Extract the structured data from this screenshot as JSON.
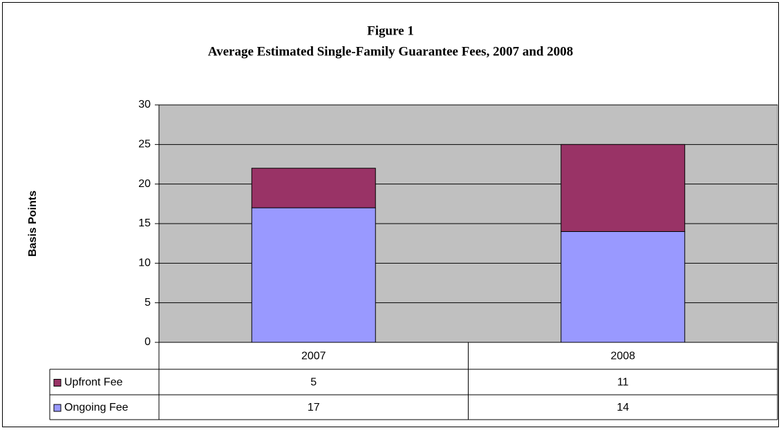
{
  "chart_data": {
    "type": "stacked_bar",
    "title": [
      "Figure 1",
      "Average Estimated Single-Family Guarantee Fees, 2007 and 2008"
    ],
    "y_label": "Basis Points",
    "categories": [
      "2007",
      "2008"
    ],
    "series": [
      {
        "name": "Upfront Fee",
        "color": "#993366",
        "values": [
          5,
          11
        ]
      },
      {
        "name": "Ongoing Fee",
        "color": "#9999ff",
        "values": [
          17,
          14
        ]
      }
    ],
    "ylim": [
      0,
      30
    ],
    "yticks": [
      0,
      5,
      10,
      15,
      20,
      25,
      30
    ],
    "grid": true,
    "plot_background": "#c0c0c0"
  }
}
